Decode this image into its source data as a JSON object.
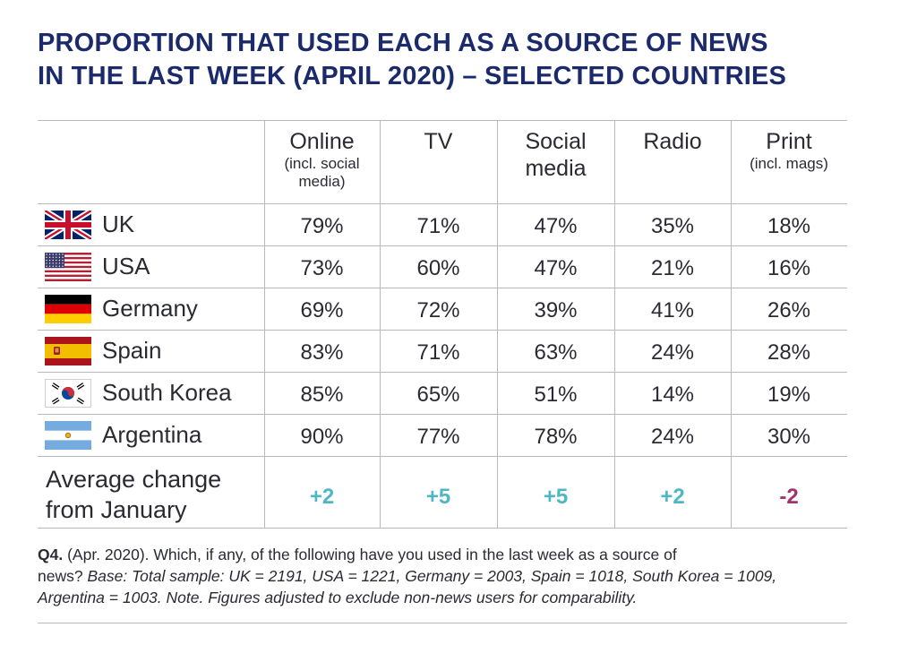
{
  "title_line1": "PROPORTION THAT USED EACH AS A SOURCE OF NEWS",
  "title_line2": "IN THE LAST WEEK (APRIL 2020) – SELECTED COUNTRIES",
  "colors": {
    "title": "#1b2a6b",
    "positive_change": "#4db8c4",
    "negative_change": "#a3336e",
    "rule": "#b9b9b9"
  },
  "chart_data": {
    "type": "table",
    "columns": [
      {
        "name": "Online",
        "sub": "(incl. social media)"
      },
      {
        "name": "TV",
        "sub": ""
      },
      {
        "name": "Social media",
        "sub": ""
      },
      {
        "name": "Radio",
        "sub": ""
      },
      {
        "name": "Print",
        "sub": "(incl. mags)"
      }
    ],
    "rows": [
      {
        "country": "UK",
        "flag": "uk-flag-icon",
        "values": [
          "79%",
          "71%",
          "47%",
          "35%",
          "18%"
        ]
      },
      {
        "country": "USA",
        "flag": "usa-flag-icon",
        "values": [
          "73%",
          "60%",
          "47%",
          "21%",
          "16%"
        ]
      },
      {
        "country": "Germany",
        "flag": "germany-flag-icon",
        "values": [
          "69%",
          "72%",
          "39%",
          "41%",
          "26%"
        ]
      },
      {
        "country": "Spain",
        "flag": "spain-flag-icon",
        "values": [
          "83%",
          "71%",
          "63%",
          "24%",
          "28%"
        ]
      },
      {
        "country": "South Korea",
        "flag": "south-korea-flag-icon",
        "values": [
          "85%",
          "65%",
          "51%",
          "14%",
          "19%"
        ]
      },
      {
        "country": "Argentina",
        "flag": "argentina-flag-icon",
        "values": [
          "90%",
          "77%",
          "78%",
          "24%",
          "30%"
        ]
      }
    ],
    "average_change": {
      "label_line1": "Average change",
      "label_line2": "from January",
      "values": [
        "+2",
        "+5",
        "+5",
        "+2",
        "-2"
      ]
    }
  },
  "note": {
    "q_label": "Q4.",
    "line1_rest": " (Apr. 2020). Which, if any, of the following have you used in the last week as a source of",
    "line2_plain": "news? ",
    "line2_italic": "Base: Total sample: UK = 2191, USA = 1221, Germany = 2003, Spain = 1018, South Korea = 1009,",
    "line3_italic": "Argentina = 1003. Note. Figures adjusted to exclude non-news users for comparability."
  }
}
